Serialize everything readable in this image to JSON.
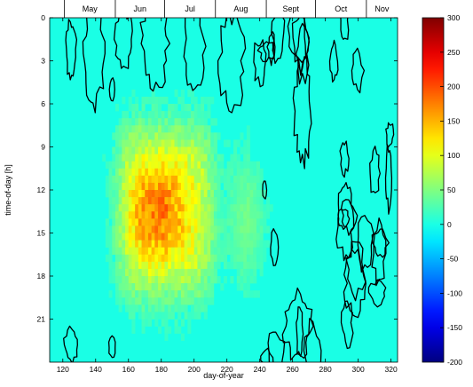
{
  "chart_data": {
    "type": "heatmap",
    "title": "",
    "xlabel": "day-of-year",
    "ylabel": "time-of-day [h]",
    "xlim": [
      112,
      324
    ],
    "ylim": [
      0,
      24
    ],
    "x_ticks": [
      120,
      140,
      160,
      180,
      200,
      220,
      240,
      260,
      280,
      300,
      320
    ],
    "y_ticks": [
      0,
      3,
      6,
      9,
      12,
      15,
      18,
      21
    ],
    "month_labels": [
      {
        "label": "May",
        "start": 121,
        "end": 151
      },
      {
        "label": "Jun",
        "start": 152,
        "end": 181
      },
      {
        "label": "Jul",
        "start": 182,
        "end": 212
      },
      {
        "label": "Aug",
        "start": 213,
        "end": 243
      },
      {
        "label": "Sept",
        "start": 244,
        "end": 273
      },
      {
        "label": "Oct",
        "start": 274,
        "end": 304
      },
      {
        "label": "Nov",
        "start": 305,
        "end": 324
      }
    ],
    "colorbar": {
      "min": -200,
      "max": 300,
      "ticks": [
        300,
        250,
        200,
        150,
        100,
        50,
        0,
        -50,
        -100,
        -150,
        -200
      ],
      "colormap": "jet"
    },
    "background_value": 0,
    "hotspot": {
      "day_range": [
        155,
        210
      ],
      "hour_range": [
        8,
        19
      ],
      "peak_value": 185,
      "peak_day": 177,
      "peak_hour": 13.5
    },
    "grid": false,
    "contour_lines": "black zero-level contours, dense after day 240"
  }
}
